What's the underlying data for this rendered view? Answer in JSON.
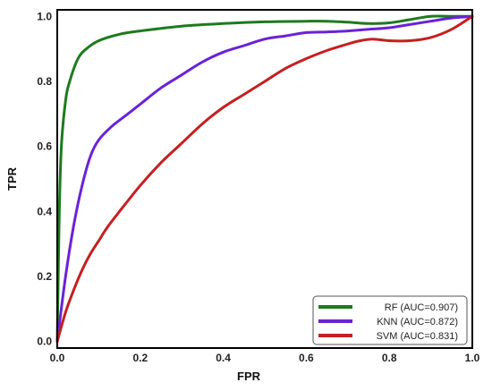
{
  "chart_data": {
    "type": "line",
    "title": "",
    "xlabel": "FPR",
    "ylabel": "TPR",
    "xlim": [
      0,
      1
    ],
    "ylim": [
      -0.02,
      1.02
    ],
    "x_ticks": [
      "0.0",
      "0.2",
      "0.4",
      "0.6",
      "0.8",
      "1.0"
    ],
    "y_ticks": [
      "0.0",
      "0.2",
      "0.4",
      "0.6",
      "0.8",
      "1.0"
    ],
    "grid": false,
    "legend_position": "bottom-right",
    "series": [
      {
        "name": "RF (AUC=0.907)",
        "color": "#1e7a1e",
        "x": [
          0,
          0.005,
          0.01,
          0.02,
          0.03,
          0.05,
          0.07,
          0.1,
          0.15,
          0.2,
          0.3,
          0.4,
          0.5,
          0.6,
          0.65,
          0.7,
          0.75,
          0.8,
          0.85,
          0.9,
          0.95,
          1.0
        ],
        "y": [
          0,
          0.4,
          0.6,
          0.74,
          0.8,
          0.87,
          0.9,
          0.925,
          0.945,
          0.955,
          0.97,
          0.978,
          0.983,
          0.985,
          0.985,
          0.982,
          0.978,
          0.98,
          0.99,
          1.0,
          1.0,
          1.0
        ]
      },
      {
        "name": "KNN (AUC=0.872)",
        "color": "#6a22d8",
        "x": [
          0,
          0.02,
          0.04,
          0.06,
          0.08,
          0.1,
          0.13,
          0.17,
          0.2,
          0.25,
          0.3,
          0.35,
          0.4,
          0.45,
          0.5,
          0.55,
          0.6,
          0.65,
          0.7,
          0.75,
          0.8,
          0.85,
          0.9,
          0.95,
          1.0
        ],
        "y": [
          0,
          0.2,
          0.36,
          0.48,
          0.57,
          0.62,
          0.66,
          0.7,
          0.73,
          0.78,
          0.82,
          0.86,
          0.89,
          0.91,
          0.93,
          0.94,
          0.95,
          0.952,
          0.955,
          0.96,
          0.965,
          0.975,
          0.985,
          0.995,
          1.0
        ]
      },
      {
        "name": "SVM (AUC=0.831)",
        "color": "#c42020",
        "x": [
          0,
          0.02,
          0.04,
          0.06,
          0.08,
          0.1,
          0.12,
          0.15,
          0.2,
          0.25,
          0.3,
          0.35,
          0.4,
          0.45,
          0.5,
          0.55,
          0.6,
          0.65,
          0.7,
          0.73,
          0.76,
          0.8,
          0.85,
          0.9,
          0.95,
          1.0
        ],
        "y": [
          0,
          0.09,
          0.16,
          0.22,
          0.27,
          0.31,
          0.35,
          0.4,
          0.48,
          0.55,
          0.61,
          0.67,
          0.72,
          0.76,
          0.8,
          0.84,
          0.87,
          0.895,
          0.915,
          0.925,
          0.93,
          0.925,
          0.925,
          0.935,
          0.96,
          1.0
        ]
      }
    ]
  }
}
